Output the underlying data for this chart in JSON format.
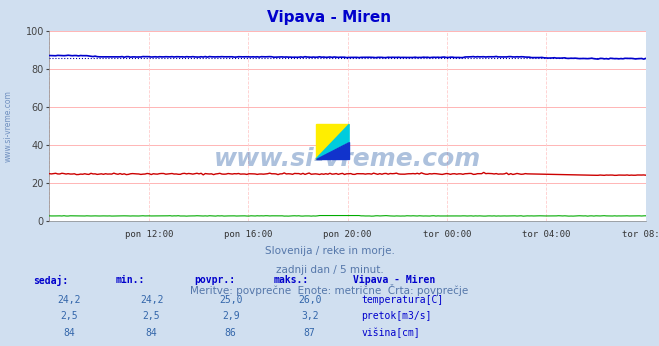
{
  "title": "Vipava - Miren",
  "title_color": "#0000cc",
  "bg_color": "#d0dff0",
  "plot_bg_color": "#ffffff",
  "grid_h_color": "#ffaaaa",
  "grid_v_color": "#ffcccc",
  "x_tick_labels": [
    "pon 12:00",
    "pon 16:00",
    "pon 20:00",
    "tor 00:00",
    "tor 04:00",
    "tor 08:00"
  ],
  "ylim": [
    0,
    100
  ],
  "yticks": [
    0,
    20,
    40,
    60,
    80,
    100
  ],
  "n_points": 288,
  "temp_color": "#cc0000",
  "flow_color": "#00aa00",
  "height_color": "#0000cc",
  "height_avg_color": "#0000aa",
  "watermark": "www.si-vreme.com",
  "watermark_color": "#3366aa",
  "caption_line1": "Slovenija / reke in morje.",
  "caption_line2": "zadnji dan / 5 minut.",
  "caption_line3": "Meritve: povprečne  Enote: metrične  Črta: povprečje",
  "caption_color": "#5577aa",
  "table_header_color": "#0000cc",
  "table_data_color": "#3366aa",
  "table_station": "Vipava - Miren",
  "left_label": "www.si-vreme.com",
  "left_label_color": "#6688bb",
  "rows": [
    {
      "sedaj": "24,2",
      "min": "24,2",
      "povpr": "25,0",
      "maks": "26,0",
      "color": "#cc0000",
      "label": "temperatura[C]"
    },
    {
      "sedaj": "2,5",
      "min": "2,5",
      "povpr": "2,9",
      "maks": "3,2",
      "color": "#00aa00",
      "label": "pretok[m3/s]"
    },
    {
      "sedaj": "84",
      "min": "84",
      "povpr": "86",
      "maks": "87",
      "color": "#0000cc",
      "label": "višina[cm]"
    }
  ]
}
